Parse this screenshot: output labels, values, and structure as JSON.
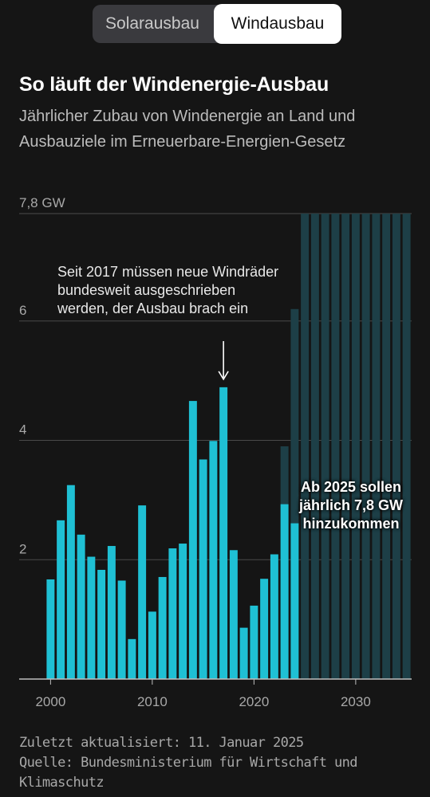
{
  "tabs": {
    "solar_label": "Solarausbau",
    "wind_label": "Windausbau"
  },
  "title": "So läuft der Windenergie-Ausbau",
  "subtitle": "Jährlicher Zubau von Windenergie an Land und Ausbauziele im Erneuerbare-Energien-Gesetz",
  "annotations": {
    "policy": "Seit 2017 müssen neue Windräder bundesweit ausgeschrieben werden, der Ausbau brach ein",
    "target": "Ab 2025 sollen jährlich 7,8 GW hinzukommen"
  },
  "footer": {
    "updated": "Zuletzt aktualisiert: 11. Januar 2025",
    "source": "Quelle: Bundesministerium für Wirtschaft und Klimaschutz"
  },
  "colors": {
    "actual": "#1fc0d4",
    "target": "#1d3f47",
    "grid": "#4a4a4a",
    "text": "#a8a8a8"
  },
  "chart_data": {
    "type": "bar",
    "unit": "GW",
    "x": [
      2000,
      2001,
      2002,
      2003,
      2004,
      2005,
      2006,
      2007,
      2008,
      2009,
      2010,
      2011,
      2012,
      2013,
      2014,
      2015,
      2016,
      2017,
      2018,
      2019,
      2020,
      2021,
      2022,
      2023,
      2024
    ],
    "series": [
      {
        "values": [
          1.67,
          2.66,
          3.25,
          2.42,
          2.05,
          1.83,
          2.23,
          1.65,
          0.67,
          2.91,
          1.13,
          1.71,
          2.19,
          2.27,
          4.66,
          3.68,
          3.99,
          4.89,
          2.16,
          0.86,
          1.23,
          1.68,
          2.09,
          2.93,
          2.61
        ]
      },
      {
        "values": [
          null,
          null,
          null,
          null,
          null,
          null,
          null,
          null,
          null,
          null,
          null,
          null,
          null,
          null,
          null,
          null,
          null,
          null,
          null,
          null,
          null,
          null,
          null,
          3.9,
          6.2
        ]
      },
      {
        "x": [
          2025,
          2026,
          2027,
          2028,
          2029,
          2030,
          2031,
          2032,
          2033,
          2034,
          2035
        ],
        "values": [
          7.8,
          7.8,
          7.8,
          7.8,
          7.8,
          7.8,
          7.8,
          7.8,
          7.8,
          7.8,
          7.8
        ]
      }
    ],
    "y_ticks": [
      {
        "value": 2,
        "label": "2"
      },
      {
        "value": 4,
        "label": "4"
      },
      {
        "value": 6,
        "label": "6"
      },
      {
        "value": 7.8,
        "label": "7,8 GW"
      }
    ],
    "x_ticks": [
      2000,
      2010,
      2020,
      2030
    ],
    "ylim": [
      0,
      7.8
    ],
    "xlim": [
      2000,
      2035
    ],
    "arrow_year": 2017
  }
}
